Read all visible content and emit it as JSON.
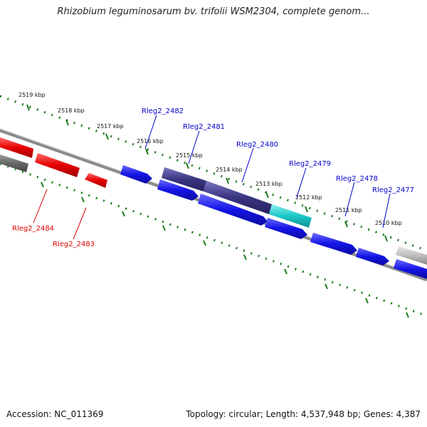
{
  "title": "Rhizobium leguminosarum bv. trifolii WSM2304, complete genom...",
  "footer": {
    "accession": "Accession: NC_011369",
    "summary": "Topology: circular; Length: 4,537,948 bp; Genes: 4,387"
  },
  "scale_labels": [
    "2519 kbp",
    "2518 kbp",
    "2517 kbp",
    "2516 kbp",
    "2515 kbp",
    "2514 kbp",
    "2513 kbp",
    "2512 kbp",
    "2511 kbp",
    "2510 kbp"
  ],
  "gene_labels_forward": [
    "Rleg2_2482",
    "Rleg2_2481",
    "Rleg2_2480",
    "Rleg2_2479",
    "Rleg2_2478",
    "Rleg2_2477"
  ],
  "gene_labels_reverse": [
    "Rleg2_2484",
    "Rleg2_2483"
  ],
  "colors": {
    "forward_label": "#0000cc",
    "reverse_label": "#dd0000",
    "gene_blue": "#1414e6",
    "gene_red": "#e60000",
    "gene_dark": "#3a3580",
    "gene_teal": "#1cc8c8",
    "gene_grey": "#8a8a8a",
    "ruler_tick": "#1a7a1a"
  }
}
